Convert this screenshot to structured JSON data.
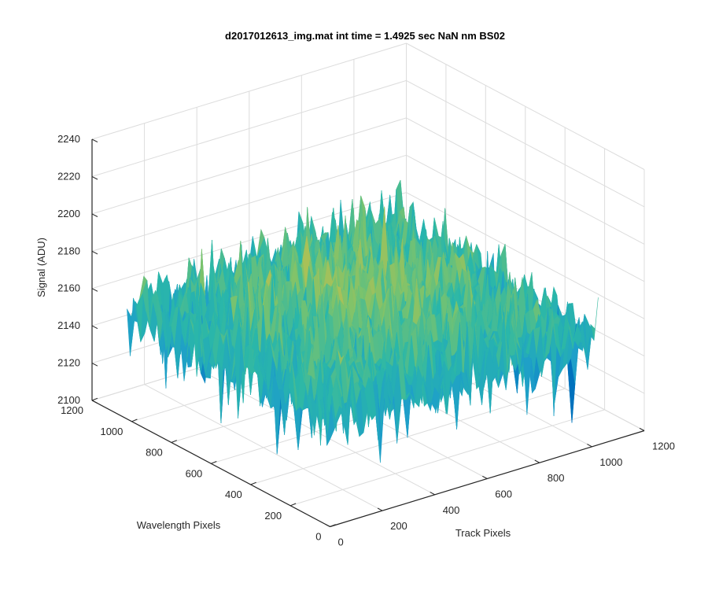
{
  "chart_data": {
    "type": "surface3d",
    "title": "d2017012613_img.mat int time = 1.4925 sec  NaN nm BS02",
    "xlabel": "Track Pixels",
    "ylabel": "Wavelength Pixels",
    "zlabel": "Signal (ADU)",
    "xlim": [
      0,
      1200
    ],
    "ylim": [
      0,
      1200
    ],
    "zlim": [
      2100,
      2240
    ],
    "xticks": [
      0,
      200,
      400,
      600,
      800,
      1000,
      1200
    ],
    "yticks": [
      0,
      200,
      400,
      600,
      800,
      1000,
      1200
    ],
    "zticks": [
      2100,
      2120,
      2140,
      2160,
      2180,
      2200,
      2220,
      2240
    ],
    "xtick_labels": [
      "0",
      "200",
      "400",
      "600",
      "800",
      "1000",
      "1200"
    ],
    "ytick_labels": [
      "0",
      "200",
      "400",
      "600",
      "800",
      "1000",
      "1200"
    ],
    "ztick_labels": [
      "2100",
      "2120",
      "2140",
      "2160",
      "2180",
      "2200",
      "2220",
      "2240"
    ],
    "data_extent": {
      "x": [
        0,
        1024
      ],
      "y": [
        0,
        1024
      ]
    },
    "surface_summary": {
      "mean_signal": 2165,
      "center_mean": 2172,
      "edge_mean": 2158,
      "noise_std": 11,
      "min_signal": 2103,
      "max_signal": 2222
    },
    "colormap": [
      "#0072bd",
      "#1e9fc9",
      "#2ab7a9",
      "#7cc36c",
      "#c7bf4a",
      "#e6c246"
    ],
    "grid": "on"
  }
}
